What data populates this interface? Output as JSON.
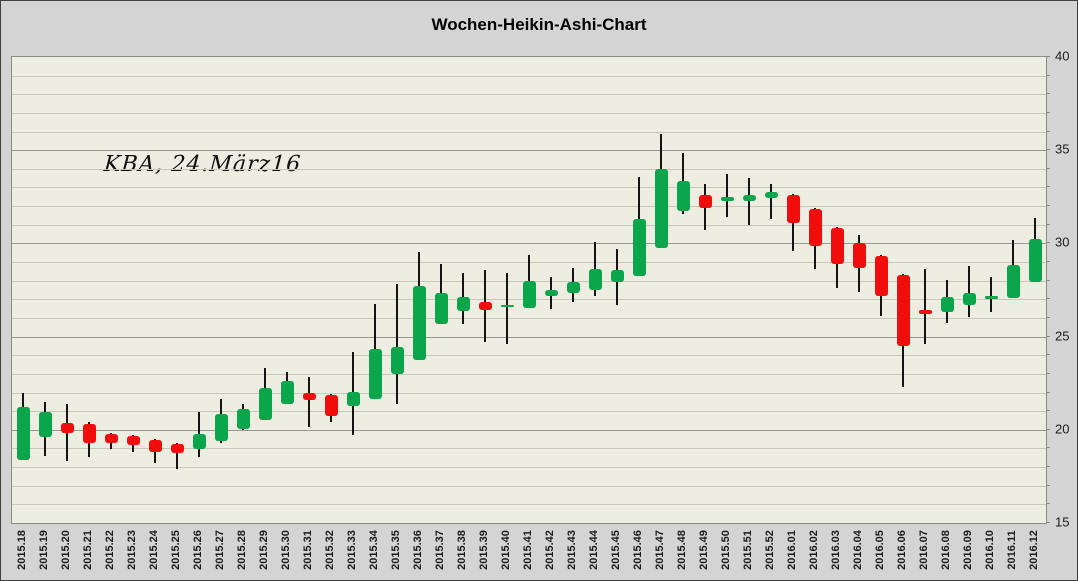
{
  "title": "Wochen-Heikin-Ashi-Chart",
  "annotation": "KBA, 24.März16",
  "colors": {
    "outer_background": "#d4d4d4",
    "plot_background": "#eeede1",
    "up_candle": "#0ba54c",
    "down_candle": "#f20d0d",
    "wick": "#141414",
    "grid_minor": "#c8c7bb",
    "grid_major": "#999890",
    "plot_border": "#8b8b82"
  },
  "chart_data": {
    "type": "candlestick",
    "subtype": "heikin-ashi-weekly",
    "title": "Wochen-Heikin-Ashi-Chart",
    "annotation": "KBA, 24.März16",
    "ylim": [
      15,
      40
    ],
    "y_ticks": [
      40,
      35,
      30,
      25,
      20,
      15
    ],
    "grid": "horizontal, minor every 1, major every 5",
    "legend": "none",
    "categories": [
      "2015.18",
      "2015.19",
      "2015.20",
      "2015.21",
      "2015.22",
      "2015.23",
      "2015.24",
      "2015.25",
      "2015.26",
      "2015.27",
      "2015.28",
      "2015.29",
      "2015.30",
      "2015.31",
      "2015.32",
      "2015.33",
      "2015.34",
      "2015.35",
      "2015.36",
      "2015.37",
      "2015.38",
      "2015.39",
      "2015.40",
      "2015.41",
      "2015.42",
      "2015.43",
      "2015.44",
      "2015.45",
      "2015.46",
      "2015.47",
      "2015.48",
      "2015.49",
      "2015.50",
      "2015.51",
      "2015.52",
      "2016.01",
      "2016.02",
      "2016.03",
      "2016.04",
      "2016.05",
      "2016.06",
      "2016.07",
      "2016.08",
      "2016.09",
      "2016.10",
      "2016.11",
      "2016.12"
    ],
    "candles": [
      {
        "label": "2015.18",
        "open": 18.4,
        "high": 22.0,
        "low": 18.4,
        "close": 21.2
      },
      {
        "label": "2015.19",
        "open": 19.6,
        "high": 21.5,
        "low": 18.6,
        "close": 20.95
      },
      {
        "label": "2015.20",
        "open": 20.35,
        "high": 21.4,
        "low": 18.3,
        "close": 19.85
      },
      {
        "label": "2015.21",
        "open": 20.3,
        "high": 20.4,
        "low": 18.55,
        "close": 19.3
      },
      {
        "label": "2015.22",
        "open": 19.8,
        "high": 19.85,
        "low": 18.95,
        "close": 19.3
      },
      {
        "label": "2015.23",
        "open": 19.65,
        "high": 19.7,
        "low": 18.8,
        "close": 19.2
      },
      {
        "label": "2015.24",
        "open": 19.45,
        "high": 19.5,
        "low": 18.2,
        "close": 18.8
      },
      {
        "label": "2015.25",
        "open": 19.25,
        "high": 19.3,
        "low": 17.9,
        "close": 18.75
      },
      {
        "label": "2015.26",
        "open": 18.95,
        "high": 20.95,
        "low": 18.55,
        "close": 19.75
      },
      {
        "label": "2015.27",
        "open": 19.4,
        "high": 21.65,
        "low": 19.3,
        "close": 20.85
      },
      {
        "label": "2015.28",
        "open": 20.05,
        "high": 21.4,
        "low": 20.0,
        "close": 21.1
      },
      {
        "label": "2015.29",
        "open": 20.5,
        "high": 23.3,
        "low": 20.5,
        "close": 22.25
      },
      {
        "label": "2015.30",
        "open": 21.4,
        "high": 23.1,
        "low": 21.4,
        "close": 22.6
      },
      {
        "label": "2015.31",
        "open": 22.0,
        "high": 22.85,
        "low": 20.15,
        "close": 21.6
      },
      {
        "label": "2015.32",
        "open": 21.85,
        "high": 21.9,
        "low": 20.4,
        "close": 20.75
      },
      {
        "label": "2015.33",
        "open": 21.3,
        "high": 24.2,
        "low": 19.7,
        "close": 22.05
      },
      {
        "label": "2015.34",
        "open": 21.65,
        "high": 26.75,
        "low": 21.65,
        "close": 24.35
      },
      {
        "label": "2015.35",
        "open": 23.0,
        "high": 27.8,
        "low": 21.4,
        "close": 24.45
      },
      {
        "label": "2015.36",
        "open": 23.75,
        "high": 29.55,
        "low": 23.75,
        "close": 27.7
      },
      {
        "label": "2015.37",
        "open": 25.7,
        "high": 28.9,
        "low": 25.7,
        "close": 27.35
      },
      {
        "label": "2015.38",
        "open": 26.4,
        "high": 28.4,
        "low": 25.7,
        "close": 27.1
      },
      {
        "label": "2015.39",
        "open": 26.85,
        "high": 28.55,
        "low": 24.7,
        "close": 26.4
      },
      {
        "label": "2015.40",
        "open": 26.6,
        "high": 28.4,
        "low": 24.6,
        "close": 26.7
      },
      {
        "label": "2015.41",
        "open": 26.55,
        "high": 29.4,
        "low": 26.55,
        "close": 28.0
      },
      {
        "label": "2015.42",
        "open": 27.2,
        "high": 28.2,
        "low": 26.5,
        "close": 27.5
      },
      {
        "label": "2015.43",
        "open": 27.35,
        "high": 28.7,
        "low": 26.85,
        "close": 27.95
      },
      {
        "label": "2015.44",
        "open": 27.5,
        "high": 30.1,
        "low": 27.2,
        "close": 28.6
      },
      {
        "label": "2015.45",
        "open": 27.95,
        "high": 29.7,
        "low": 26.7,
        "close": 28.55
      },
      {
        "label": "2015.46",
        "open": 28.25,
        "high": 33.55,
        "low": 28.25,
        "close": 31.3
      },
      {
        "label": "2015.47",
        "open": 29.75,
        "high": 35.85,
        "low": 29.75,
        "close": 34.0
      },
      {
        "label": "2015.48",
        "open": 31.75,
        "high": 34.85,
        "low": 31.6,
        "close": 33.35
      },
      {
        "label": "2015.49",
        "open": 32.6,
        "high": 33.2,
        "low": 30.7,
        "close": 31.9
      },
      {
        "label": "2015.50",
        "open": 32.25,
        "high": 33.75,
        "low": 31.4,
        "close": 32.5
      },
      {
        "label": "2015.51",
        "open": 32.3,
        "high": 33.5,
        "low": 31.0,
        "close": 32.6
      },
      {
        "label": "2015.52",
        "open": 32.45,
        "high": 33.2,
        "low": 31.3,
        "close": 32.75
      },
      {
        "label": "2016.01",
        "open": 32.6,
        "high": 32.65,
        "low": 29.6,
        "close": 31.1
      },
      {
        "label": "2016.02",
        "open": 31.85,
        "high": 31.9,
        "low": 28.65,
        "close": 29.85
      },
      {
        "label": "2016.03",
        "open": 30.85,
        "high": 30.9,
        "low": 27.6,
        "close": 28.9
      },
      {
        "label": "2016.04",
        "open": 30.0,
        "high": 30.45,
        "low": 27.4,
        "close": 28.7
      },
      {
        "label": "2016.05",
        "open": 29.35,
        "high": 29.4,
        "low": 26.1,
        "close": 27.2
      },
      {
        "label": "2016.06",
        "open": 28.3,
        "high": 28.35,
        "low": 22.3,
        "close": 24.5
      },
      {
        "label": "2016.07",
        "open": 26.45,
        "high": 28.6,
        "low": 24.6,
        "close": 26.2
      },
      {
        "label": "2016.08",
        "open": 26.3,
        "high": 28.05,
        "low": 25.75,
        "close": 27.1
      },
      {
        "label": "2016.09",
        "open": 26.7,
        "high": 28.8,
        "low": 26.05,
        "close": 27.35
      },
      {
        "label": "2016.10",
        "open": 27.0,
        "high": 28.2,
        "low": 26.3,
        "close": 27.2
      },
      {
        "label": "2016.11",
        "open": 27.05,
        "high": 30.2,
        "low": 27.05,
        "close": 28.85
      },
      {
        "label": "2016.12",
        "open": 27.95,
        "high": 31.35,
        "low": 27.95,
        "close": 30.25
      }
    ]
  }
}
